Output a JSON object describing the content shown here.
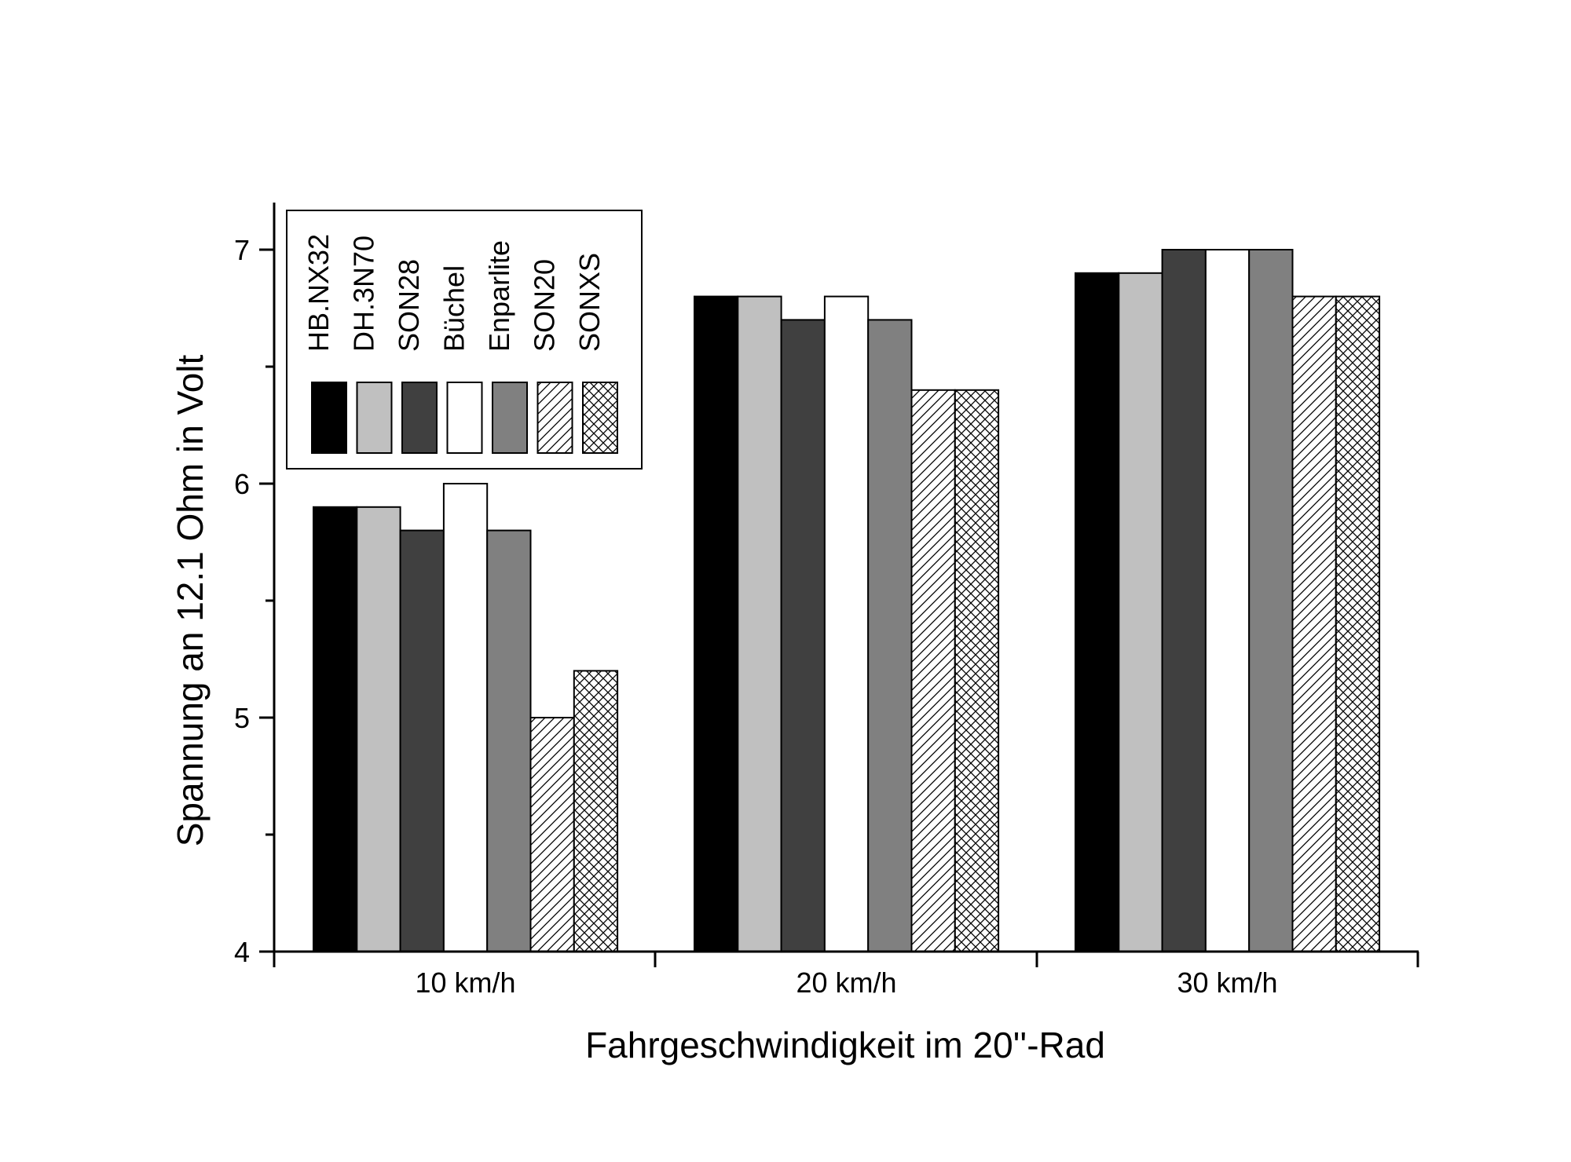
{
  "chart_data": {
    "type": "bar",
    "title": "",
    "xlabel": "Fahrgeschwindigkeit im 20''-Rad",
    "ylabel": "Spannung an 12.1 Ohm in Volt",
    "ylim": [
      4,
      7.2
    ],
    "yticks": [
      4,
      5,
      6,
      7
    ],
    "ytick_labels": [
      "4",
      "5",
      "6",
      "7"
    ],
    "categories": [
      "10 km/h",
      "20 km/h",
      "30 km/h"
    ],
    "legend_position": "top-left",
    "series": [
      {
        "name": "HB.NX32",
        "fill": "#000000",
        "values": [
          5.9,
          6.8,
          6.9
        ]
      },
      {
        "name": "DH.3N70",
        "fill": "#c0c0c0",
        "values": [
          5.9,
          6.8,
          6.9
        ]
      },
      {
        "name": "SON28",
        "fill": "#404040",
        "values": [
          5.8,
          6.7,
          7.0
        ]
      },
      {
        "name": "Büchel",
        "fill": "#ffffff",
        "values": [
          6.0,
          6.8,
          7.0
        ]
      },
      {
        "name": "Enparlite",
        "fill": "#808080",
        "values": [
          5.8,
          6.7,
          7.0
        ]
      },
      {
        "name": "SON20",
        "fill": "url(#hatch)",
        "values": [
          5.0,
          6.4,
          6.8
        ]
      },
      {
        "name": "SONXS",
        "fill": "url(#cross)",
        "values": [
          5.2,
          6.4,
          6.8
        ]
      }
    ]
  }
}
